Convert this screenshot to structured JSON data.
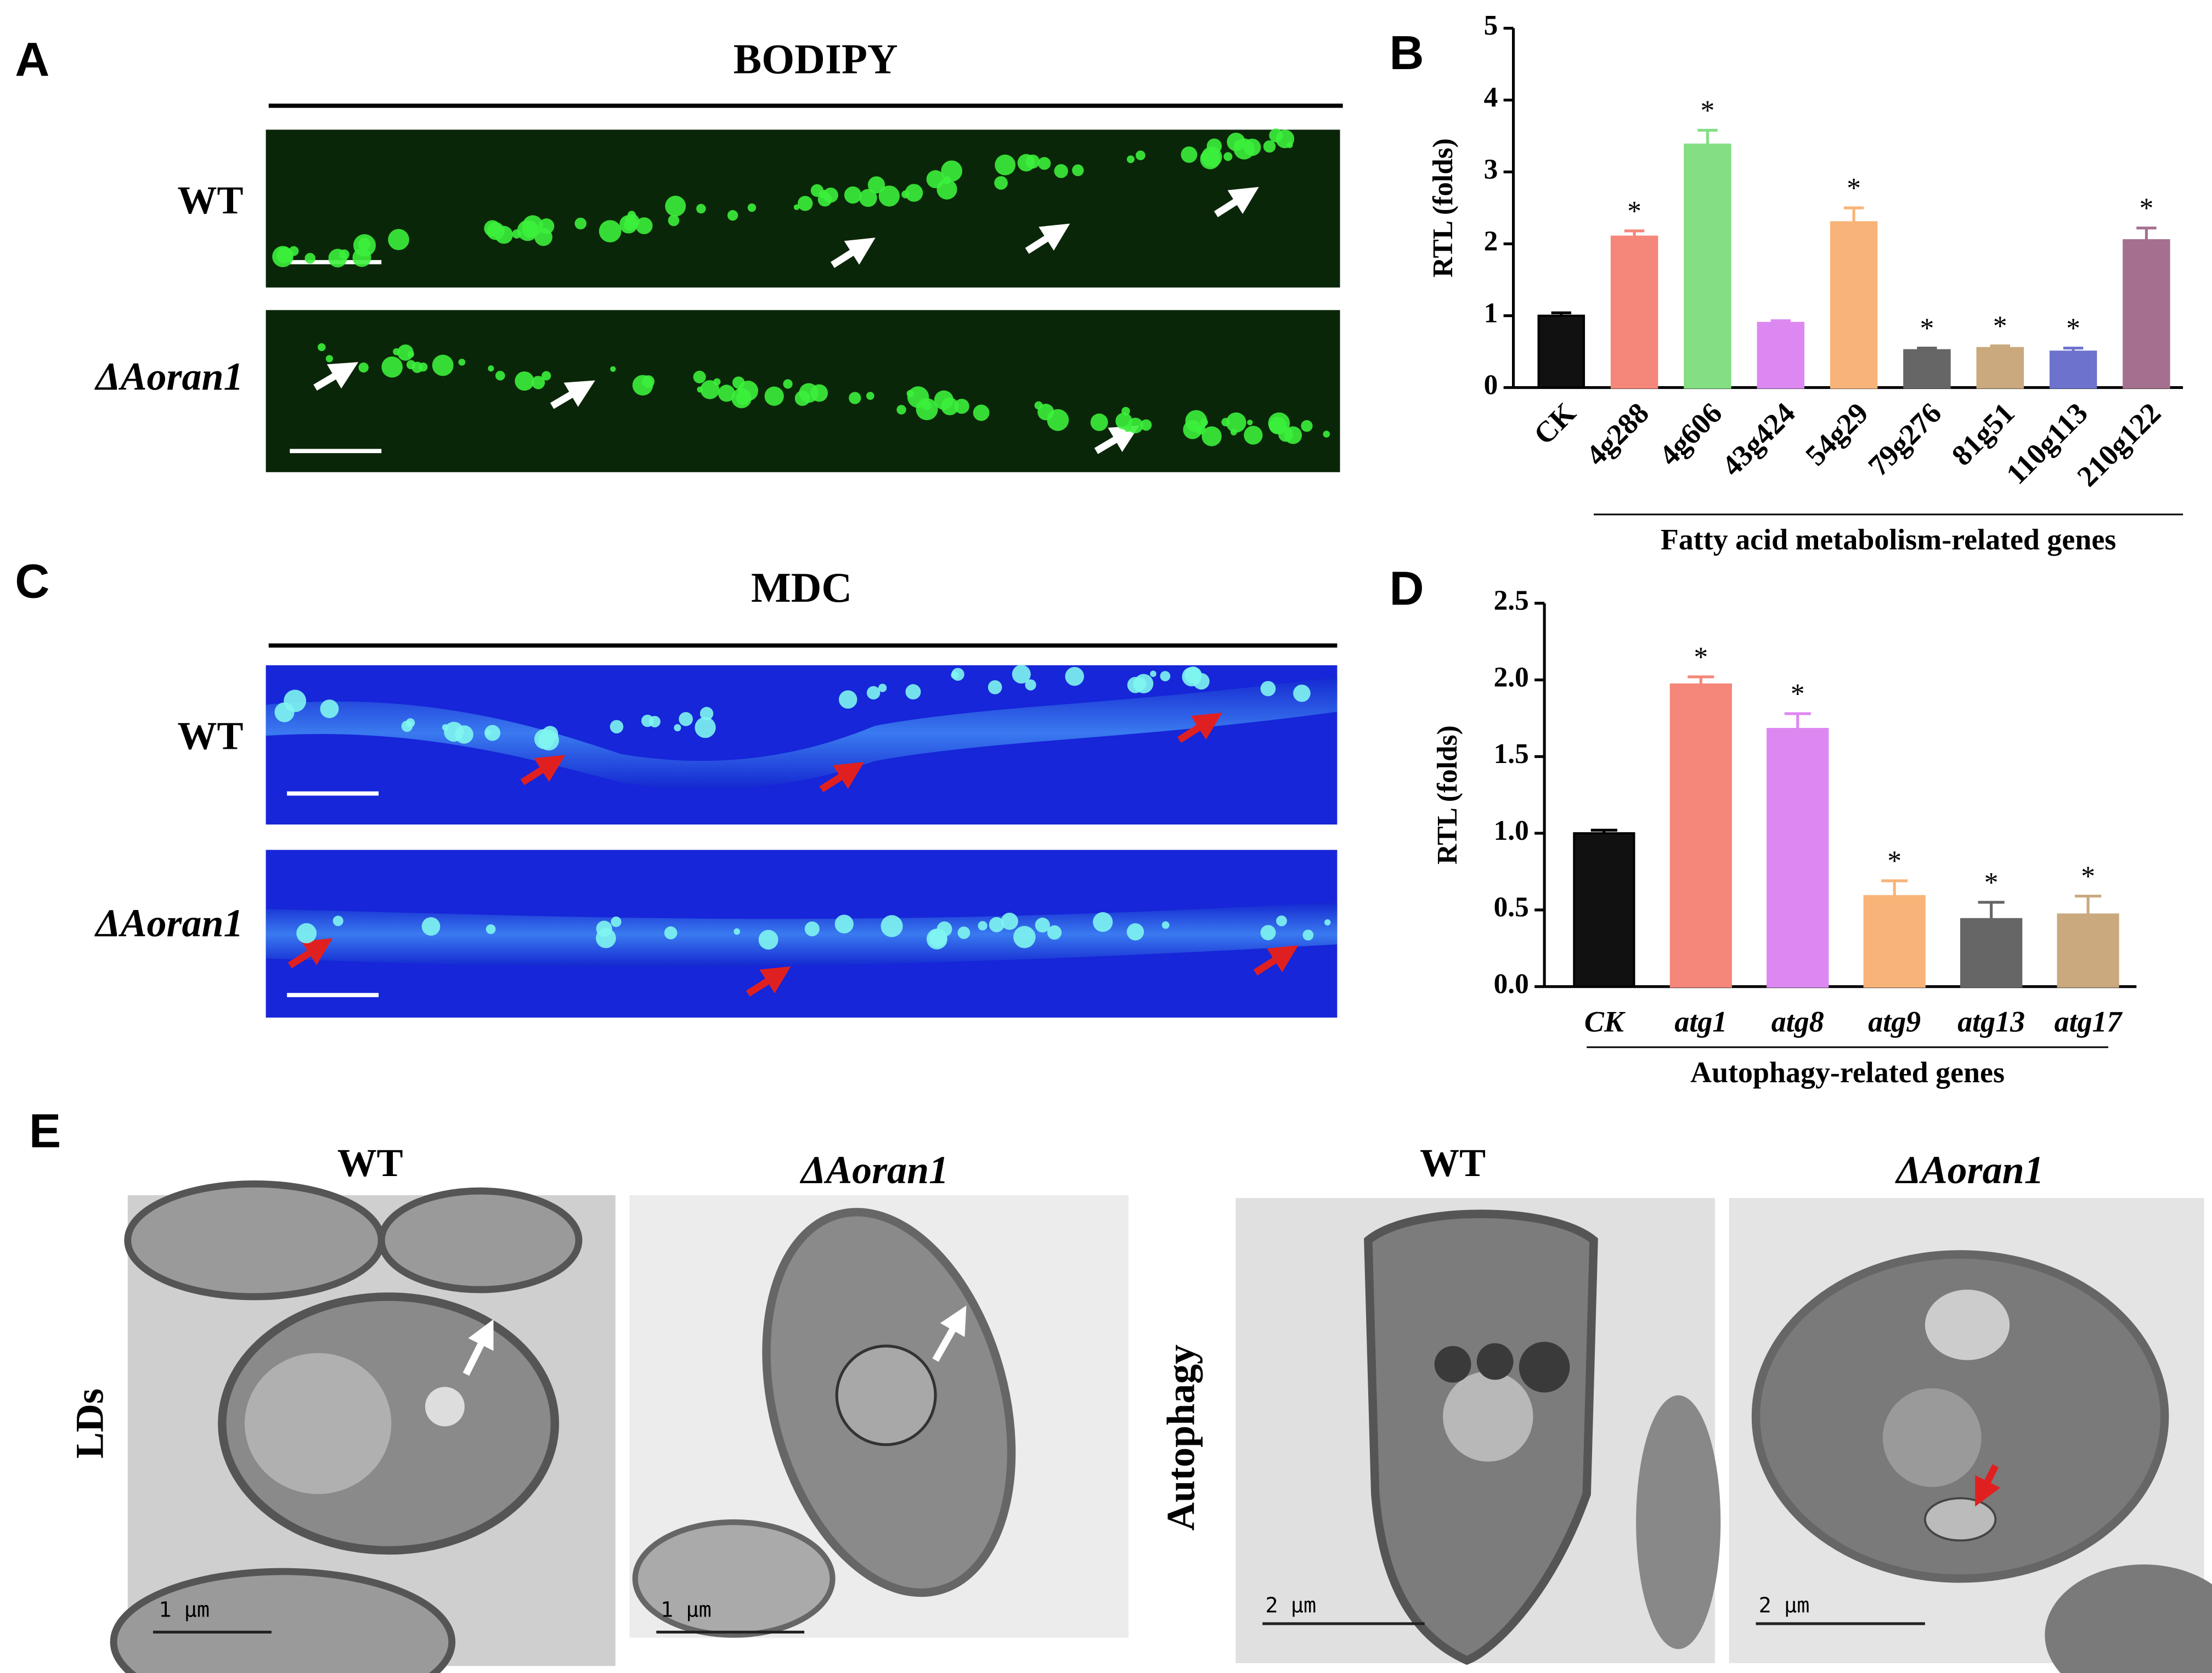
{
  "panel_a": {
    "letter": "A",
    "title": "BODIPY",
    "rows": [
      "WT",
      "ΔAoran1"
    ]
  },
  "panel_c": {
    "letter": "C",
    "title": "MDC",
    "rows": [
      "WT",
      "ΔAoran1"
    ]
  },
  "panel_e": {
    "letter": "E",
    "columns": [
      "WT",
      "ΔAoran1",
      "WT",
      "ΔAoran1"
    ],
    "rows": [
      "LDs",
      "Autophagy"
    ],
    "scale_bars": [
      "1 μm",
      "1 μm",
      "2 μm",
      "2 μm"
    ]
  },
  "chart_data": [
    {
      "type": "bar",
      "panel": "B",
      "ylabel": "RTL (folds)",
      "group_label": "Fatty acid metabolism-related genes",
      "categories": [
        "CK",
        "4g288",
        "4g606",
        "43g424",
        "54g29",
        "79g276",
        "81g51",
        "110g113",
        "210g122"
      ],
      "values": [
        1.0,
        2.1,
        3.38,
        0.9,
        2.3,
        0.52,
        0.55,
        0.5,
        2.05
      ],
      "errors": [
        0.04,
        0.08,
        0.2,
        0.03,
        0.2,
        0.03,
        0.03,
        0.05,
        0.17
      ],
      "colors": [
        "#111111",
        "#f5867a",
        "#84de84",
        "#dd88f2",
        "#f8b478",
        "#666666",
        "#c9a97d",
        "#6d73cc",
        "#a5708f"
      ],
      "annotations": [
        null,
        "*",
        "*",
        null,
        "*",
        "*",
        "*",
        "*",
        "*"
      ],
      "category_style": "normal",
      "ylim": [
        0,
        5
      ],
      "yticks": [
        0,
        1,
        2,
        3,
        4,
        5
      ]
    },
    {
      "type": "bar",
      "panel": "D",
      "ylabel": "RTL (folds)",
      "group_label": "Autophagy-related genes",
      "categories": [
        "CK",
        "atg1",
        "atg8",
        "atg9",
        "atg13",
        "atg17"
      ],
      "values": [
        1.0,
        1.97,
        1.68,
        0.59,
        0.44,
        0.47
      ],
      "errors": [
        0.02,
        0.05,
        0.1,
        0.1,
        0.11,
        0.12
      ],
      "colors": [
        "#111111",
        "#f5867a",
        "#dd88f2",
        "#f8b478",
        "#666666",
        "#c9a97d"
      ],
      "annotations": [
        null,
        "*",
        "*",
        "*",
        "*",
        "*"
      ],
      "category_style": "italic",
      "ylim": [
        0,
        2.5
      ],
      "yticks": [
        {
          "value": 0,
          "label": "0.0"
        },
        0.5,
        {
          "value": 1,
          "label": "1.0"
        },
        1.5,
        {
          "value": 2,
          "label": "2.0"
        },
        2.5
      ]
    }
  ]
}
